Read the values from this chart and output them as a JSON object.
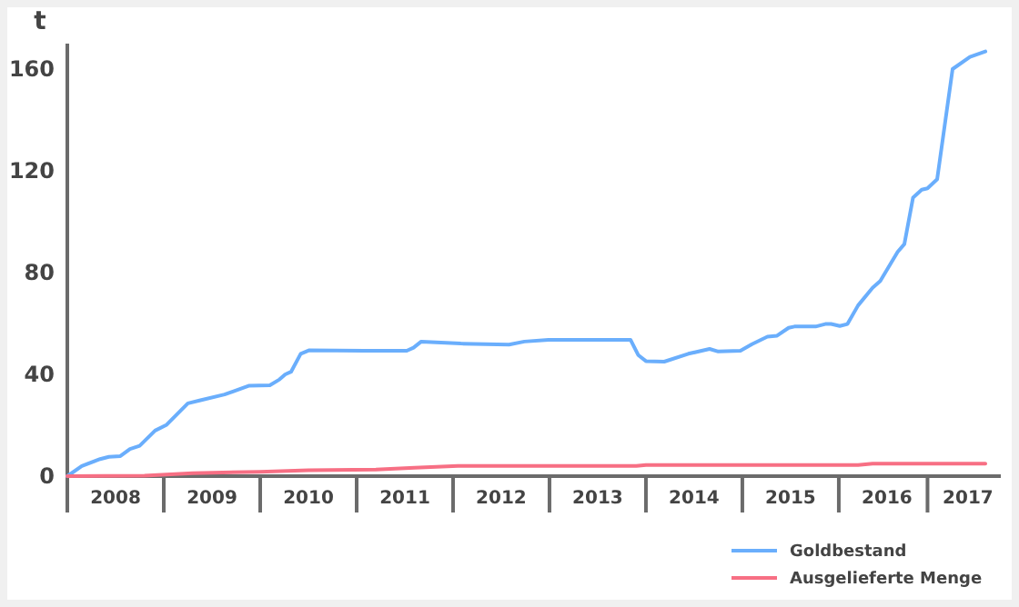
{
  "chart_data": {
    "type": "line",
    "ylabel": "t",
    "xlim": [
      2008,
      2017.68
    ],
    "ylim": [
      0,
      170
    ],
    "xticks": [
      {
        "value": 2008.5,
        "label": "2008"
      },
      {
        "value": 2009.5,
        "label": "2009"
      },
      {
        "value": 2010.5,
        "label": "2010"
      },
      {
        "value": 2011.5,
        "label": "2011"
      },
      {
        "value": 2012.5,
        "label": "2012"
      },
      {
        "value": 2013.5,
        "label": "2013"
      },
      {
        "value": 2014.5,
        "label": "2014"
      },
      {
        "value": 2015.5,
        "label": "2015"
      },
      {
        "value": 2016.5,
        "label": "2016"
      },
      {
        "value": 2017.34,
        "label": "2017"
      }
    ],
    "yticks": [
      0,
      40,
      80,
      120,
      160
    ],
    "grid": false,
    "legend": "bottom right",
    "marker": "none",
    "line_style": "solid",
    "series": [
      {
        "name": "Goldbestand",
        "color": "#6aaefc",
        "x": [
          2008.0,
          2008.15,
          2008.34,
          2008.43,
          2008.55,
          2008.65,
          2008.75,
          2008.91,
          2009.03,
          2009.25,
          2009.38,
          2009.63,
          2009.88,
          2010.1,
          2010.2,
          2010.26,
          2010.32,
          2010.42,
          2010.51,
          2011.08,
          2011.52,
          2011.59,
          2011.67,
          2012.08,
          2012.58,
          2012.74,
          2012.99,
          2013.84,
          2013.92,
          2014.0,
          2014.19,
          2014.44,
          2014.66,
          2014.75,
          2014.98,
          2015.1,
          2015.26,
          2015.36,
          2015.48,
          2015.54,
          2015.76,
          2015.86,
          2015.92,
          2016.01,
          2016.09,
          2016.2,
          2016.35,
          2016.43,
          2016.61,
          2016.68,
          2016.77,
          2016.86,
          2016.92,
          2017.02,
          2017.18,
          2017.36,
          2017.52
        ],
        "values": [
          0,
          4,
          6.7,
          7.6,
          7.9,
          10.7,
          11.9,
          17.9,
          20.2,
          28.6,
          29.8,
          32.1,
          35.5,
          35.7,
          38,
          40,
          41,
          48.1,
          49.5,
          49.3,
          49.3,
          50.5,
          52.9,
          52.1,
          51.7,
          52.9,
          53.6,
          53.6,
          47.6,
          45.2,
          45,
          48.1,
          50,
          49,
          49.3,
          51.9,
          54.8,
          55.2,
          58.3,
          58.8,
          58.8,
          59.8,
          59.8,
          59,
          59.8,
          67.1,
          74,
          76.7,
          88.1,
          91.2,
          109.5,
          112.6,
          113.1,
          116.7,
          160,
          164.8,
          166.9
        ]
      },
      {
        "name": "Ausgelieferte Menge",
        "color": "#f76f84",
        "x": [
          2008.0,
          2008.8,
          2009.3,
          2010.0,
          2010.5,
          2011.2,
          2011.6,
          2012.05,
          2013.9,
          2014.0,
          2016.2,
          2016.35,
          2017.52
        ],
        "values": [
          0,
          0.2,
          1.2,
          1.7,
          2.3,
          2.6,
          3.3,
          4.0,
          4.0,
          4.4,
          4.4,
          4.9,
          4.9
        ]
      }
    ]
  }
}
